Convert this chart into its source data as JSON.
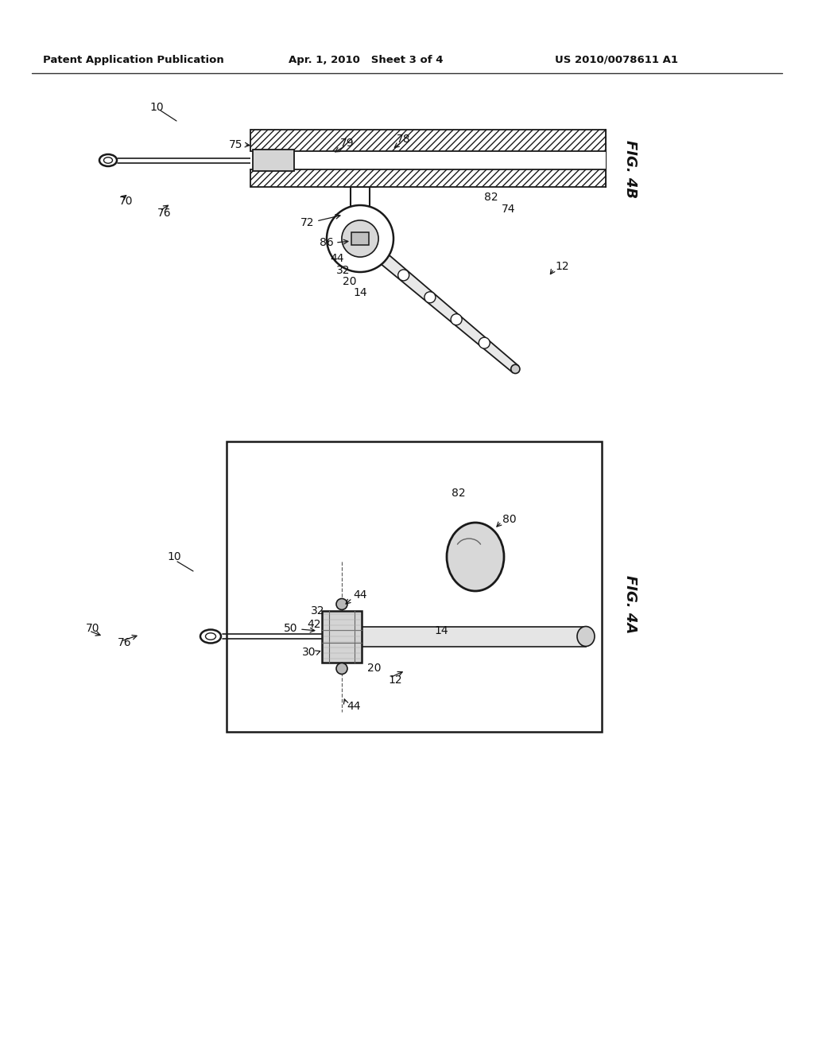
{
  "background_color": "#ffffff",
  "header_text_left": "Patent Application Publication",
  "header_text_mid": "Apr. 1, 2010   Sheet 3 of 4",
  "header_text_right": "US 2010/0078611 A1",
  "fig4b_label": "FIG. 4B",
  "fig4a_label": "FIG. 4A",
  "lc": "#1a1a1a",
  "tc": "#111111",
  "gray_light": "#e0e0e0",
  "gray_mid": "#c8c8c8",
  "gray_dark": "#aaaaaa"
}
